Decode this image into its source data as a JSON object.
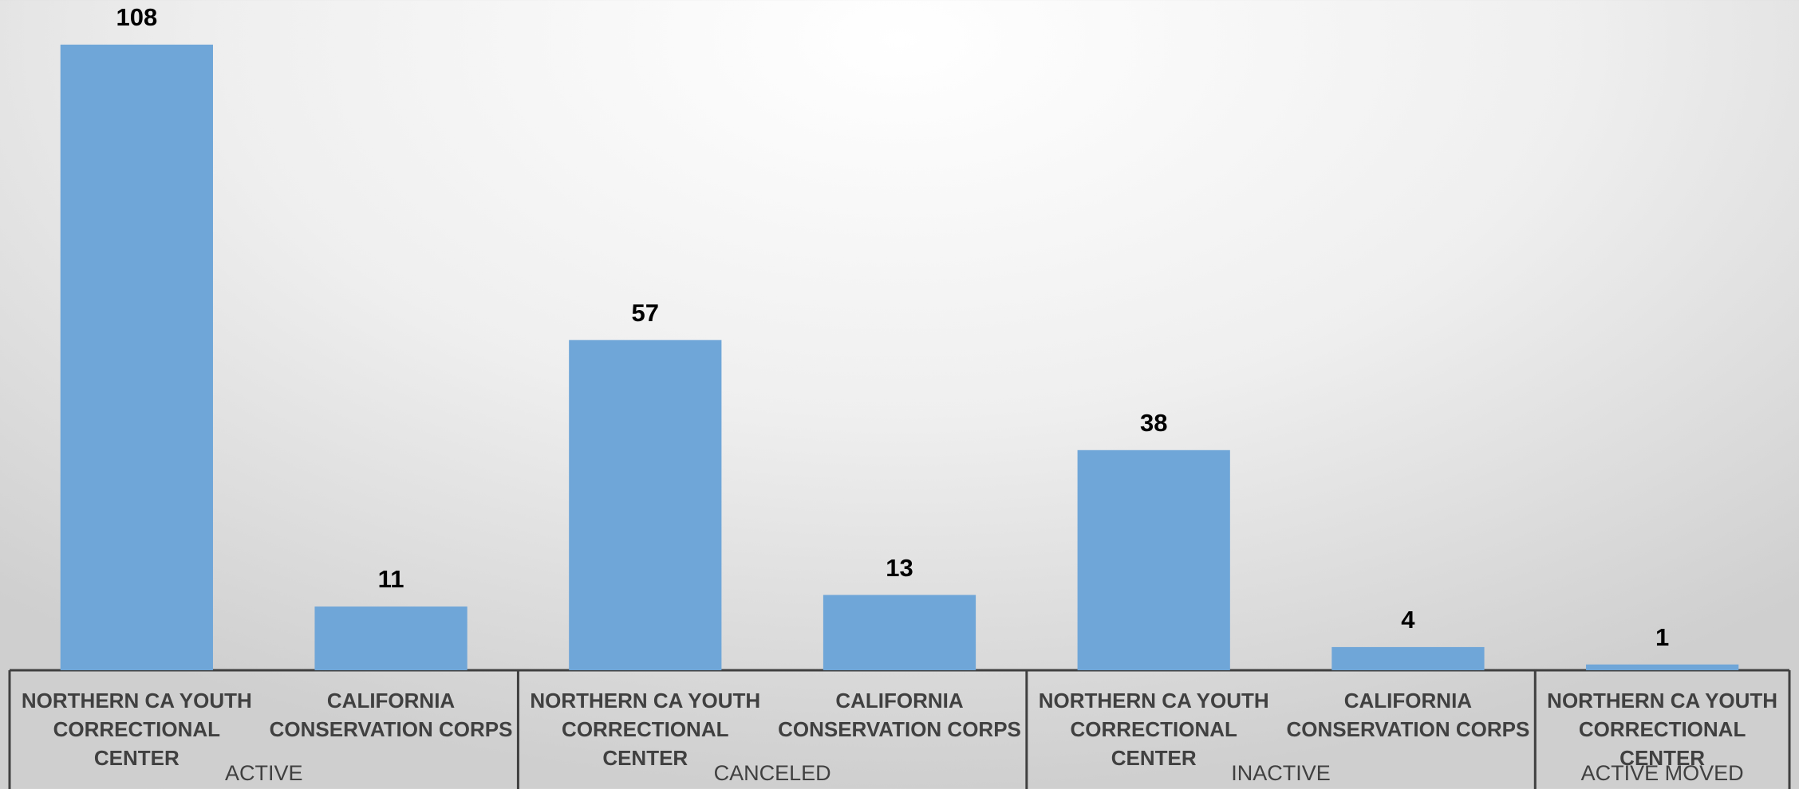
{
  "chart_data": {
    "type": "bar",
    "color": "#6fa6d8",
    "groups": [
      {
        "label": "ACTIVE",
        "categories": [
          "NORTHERN CA YOUTH CORRECTIONAL CENTER",
          "CALIFORNIA CONSERVATION CORPS"
        ],
        "values": [
          108,
          11
        ]
      },
      {
        "label": "CANCELED",
        "categories": [
          "NORTHERN CA YOUTH CORRECTIONAL CENTER",
          "CALIFORNIA CONSERVATION CORPS"
        ],
        "values": [
          57,
          13
        ]
      },
      {
        "label": "INACTIVE",
        "categories": [
          "NORTHERN CA YOUTH CORRECTIONAL CENTER",
          "CALIFORNIA CONSERVATION CORPS"
        ],
        "values": [
          38,
          4
        ]
      },
      {
        "label": "ACTIVE MOVED",
        "categories": [
          "NORTHERN CA YOUTH CORRECTIONAL CENTER"
        ],
        "values": [
          1
        ]
      }
    ]
  }
}
